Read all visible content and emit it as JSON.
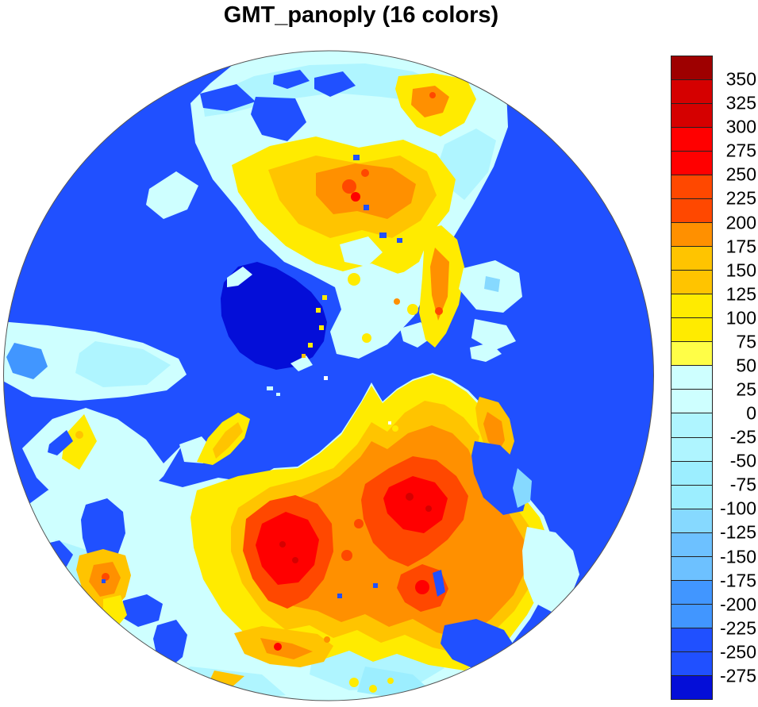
{
  "title": "GMT_panoply (16 colors)",
  "chart_data": {
    "type": "heatmap",
    "title": "GMT_panoply (16 colors)",
    "colormap_name": "GMT_panoply",
    "n_colors": 16,
    "value_range": [
      -275,
      350
    ],
    "level_step": 25,
    "legend_position": "right",
    "colorbar": {
      "orientation": "vertical",
      "tick_labels_top_to_bottom": [
        "350",
        "325",
        "300",
        "275",
        "250",
        "225",
        "200",
        "175",
        "150",
        "125",
        "100",
        "75",
        "50",
        "25",
        "0",
        "-25",
        "-50",
        "-75",
        "-100",
        "-125",
        "-150",
        "-175",
        "-200",
        "-225",
        "-250",
        "-275"
      ],
      "segment_colors_top_to_bottom": [
        "#9E0000",
        "#D50000",
        "#D50000",
        "#FF0000",
        "#FF0000",
        "#FF4800",
        "#FF4800",
        "#FF9000",
        "#FFC400",
        "#FFC400",
        "#FFEB00",
        "#FFEB00",
        "#FFFE47",
        "#CEFFFF",
        "#CEFFFF",
        "#AFF5FF",
        "#AFF5FF",
        "#9CEEFF",
        "#9CEEFF",
        "#86D9FF",
        "#6DC1FF",
        "#6DC1FF",
        "#4196FF",
        "#4196FF",
        "#2050FF",
        "#2050FF",
        "#040ED8"
      ]
    },
    "palette_16_low_to_high": [
      "#040ED8",
      "#2050FF",
      "#4196FF",
      "#6DC1FF",
      "#86D9FF",
      "#9CEEFF",
      "#AFF5FF",
      "#CEFFFF",
      "#FFFE47",
      "#FFEB00",
      "#FFC400",
      "#FF9000",
      "#FF4800",
      "#FF0000",
      "#D50000",
      "#9E0000"
    ]
  },
  "map": {
    "view": "polar view of Northern Hemisphere",
    "background_color": "#FFFFFF",
    "outline_color": "#555555",
    "ocean_color": "#2050FF"
  },
  "palette": {
    "dark-blue": "#040ED8",
    "ocean-blue": "#2050FF",
    "mid-blue": "#4196FF",
    "sky-deep": "#6DC1FF",
    "sky": "#86D9FF",
    "cyan-mid": "#9CEEFF",
    "cyan-light": "#AFF5FF",
    "cyan-pale": "#CEFFFF",
    "yellow-pale": "#FFFE47",
    "yellow": "#FFEB00",
    "amber": "#FFC400",
    "orange": "#FF9000",
    "orange-red": "#FF4800",
    "red": "#FF0000",
    "red-dark": "#D50000",
    "red-darkest": "#9E0000",
    "white": "#FFFFFF"
  }
}
